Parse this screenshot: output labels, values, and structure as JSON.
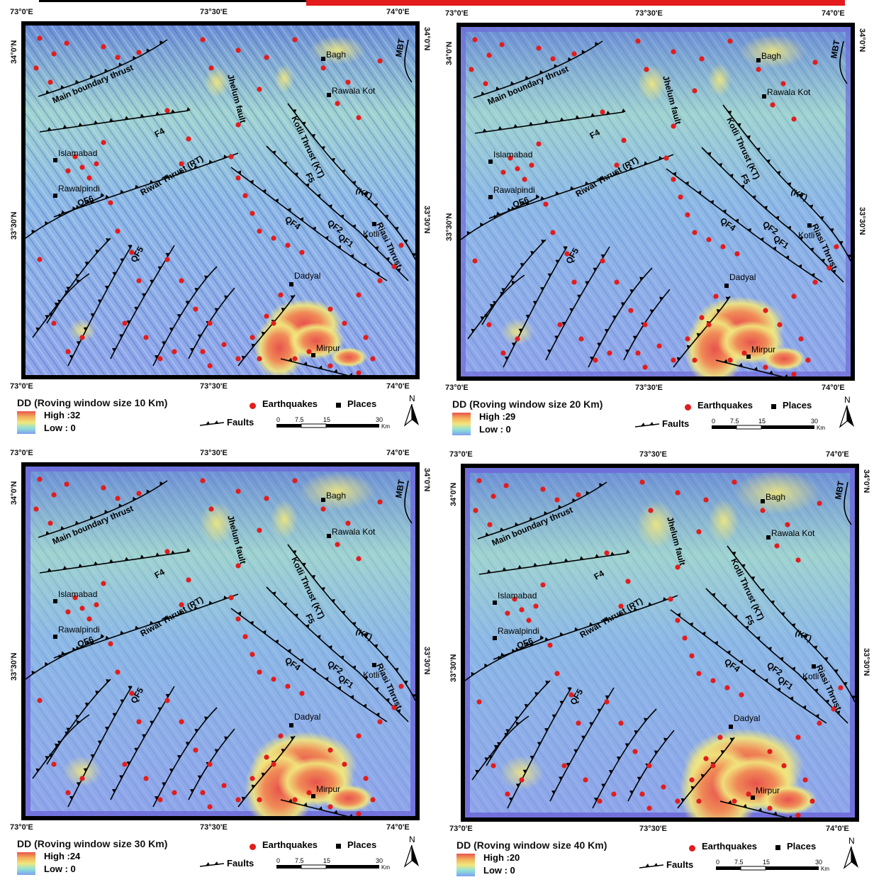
{
  "coords": {
    "top_labels": [
      "73°0'E",
      "73°30'E",
      "74°0'E"
    ],
    "bottom_labels": [
      "73°0'E",
      "73°30'E",
      "74°0'E"
    ],
    "left_labels": [
      "34°0'N",
      "33°30'N"
    ],
    "right_labels": [
      "34°0'N",
      "33°30'N"
    ]
  },
  "place_labels": [
    "Bagh",
    "Rawala Kot",
    "Islamabad",
    "Rawalpindi",
    "Kotli",
    "Dadyal",
    "Mirpur"
  ],
  "fault_labels": [
    "Main boundary thrust",
    "MBT",
    "Jhelum fault",
    "Kotli Thrust (KT)",
    "F4",
    "F5",
    "(KT)",
    "Riasi Thrust",
    "Riwat Thrust (RT)",
    "QF6",
    "QF4",
    "QF2",
    "QF1",
    "QF5"
  ],
  "legend": {
    "earthquakes": "Earthquakes",
    "places": "Places",
    "faults": "Faults",
    "scale_ticks": [
      "0",
      "7.5",
      "15",
      "30"
    ],
    "scale_unit": "Km",
    "north": "N"
  },
  "panels": [
    {
      "title": "DD (Roving window size 10 Km)",
      "high": "High :32",
      "low": "Low : 0"
    },
    {
      "title": "DD (Roving window size 20 Km)",
      "high": "High :29",
      "low": "Low : 0"
    },
    {
      "title": "DD (Roving window size 30 Km)",
      "high": "High :24",
      "low": "Low : 0"
    },
    {
      "title": "DD (Roving window size 40 Km)",
      "high": "High :20",
      "low": "Low : 0"
    }
  ],
  "colors": {
    "high": "#e8534d",
    "mid": "#f1e77d",
    "low": "#7d9ff0",
    "earthquake": "#e11d1d",
    "fault": "#000000"
  }
}
